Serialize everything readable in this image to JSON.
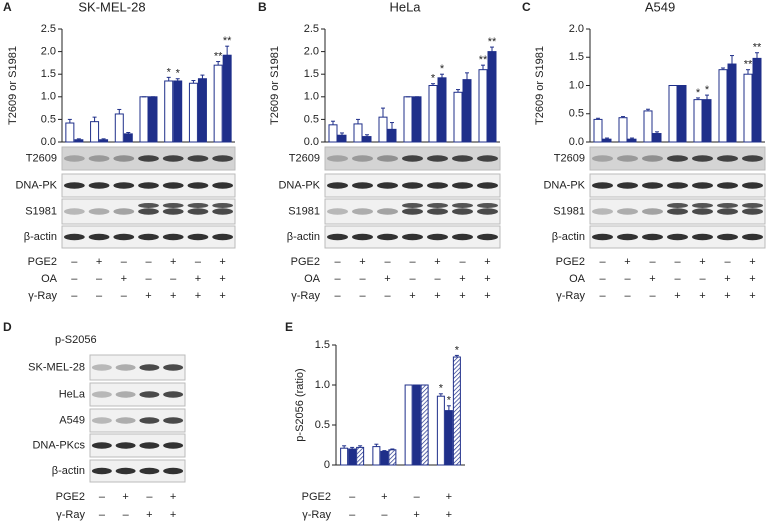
{
  "chart_data": [
    {
      "type": "bar",
      "panel": "A",
      "title": "SK-MEL-28",
      "y_label": "T2609 or S1981",
      "ylim": [
        0,
        2.5
      ],
      "yticks": [
        {
          "value": 0,
          "label": "0.0"
        },
        0.5,
        {
          "value": 1,
          "label": "1.0"
        },
        1.5,
        {
          "value": 2,
          "label": "2.0"
        },
        2.5
      ],
      "series": [
        {
          "color": "#ffffff",
          "values": [
            0.42,
            0.45,
            0.62,
            1.0,
            1.35,
            1.3,
            1.7
          ],
          "errors": [
            0.08,
            0.1,
            0.1,
            0,
            0.08,
            0.06,
            0.08
          ],
          "annotations": [
            null,
            null,
            null,
            null,
            "*",
            null,
            "**"
          ]
        },
        {
          "color": "#1f2f8a",
          "values": [
            0.05,
            0.05,
            0.18,
            1.0,
            1.35,
            1.4,
            1.92
          ],
          "errors": [
            0.02,
            0.02,
            0.03,
            0,
            0.05,
            0.08,
            0.2
          ],
          "annotations": [
            null,
            null,
            null,
            null,
            "*",
            null,
            "**"
          ]
        }
      ],
      "blots": [
        "T2609",
        "DNA-PK",
        "S1981",
        "β-actin"
      ],
      "conditions": [
        {
          "label": "PGE2",
          "signs": [
            "–",
            "+",
            "–",
            "–",
            "+",
            "–",
            "+"
          ]
        },
        {
          "label": "OA",
          "signs": [
            "–",
            "–",
            "+",
            "–",
            "–",
            "+",
            "+"
          ]
        },
        {
          "label": "γ-Ray",
          "signs": [
            "–",
            "–",
            "–",
            "+",
            "+",
            "+",
            "+"
          ]
        }
      ]
    },
    {
      "type": "bar",
      "panel": "B",
      "title": "HeLa",
      "y_label": "T2609 or S1981",
      "ylim": [
        0,
        2.5
      ],
      "yticks": [
        {
          "value": 0,
          "label": "0.0"
        },
        0.5,
        {
          "value": 1,
          "label": "1.0"
        },
        1.5,
        {
          "value": 2,
          "label": "2.0"
        },
        2.5
      ],
      "series": [
        {
          "color": "#ffffff",
          "values": [
            0.38,
            0.4,
            0.55,
            1.0,
            1.25,
            1.1,
            1.6
          ],
          "errors": [
            0.08,
            0.1,
            0.2,
            0,
            0.04,
            0.06,
            0.1
          ],
          "annotations": [
            null,
            null,
            null,
            null,
            "*",
            null,
            "**"
          ]
        },
        {
          "color": "#1f2f8a",
          "values": [
            0.15,
            0.12,
            0.28,
            1.0,
            1.42,
            1.38,
            2.0
          ],
          "errors": [
            0.05,
            0.04,
            0.15,
            0,
            0.08,
            0.15,
            0.1
          ],
          "annotations": [
            null,
            null,
            null,
            null,
            "*",
            null,
            "**"
          ]
        }
      ],
      "blots": [
        "T2609",
        "DNA-PK",
        "S1981",
        "β-actin"
      ],
      "conditions": [
        {
          "label": "PGE2",
          "signs": [
            "–",
            "+",
            "–",
            "–",
            "+",
            "–",
            "+"
          ]
        },
        {
          "label": "OA",
          "signs": [
            "–",
            "–",
            "+",
            "–",
            "–",
            "+",
            "+"
          ]
        },
        {
          "label": "γ-Ray",
          "signs": [
            "–",
            "–",
            "–",
            "+",
            "+",
            "+",
            "+"
          ]
        }
      ]
    },
    {
      "type": "bar",
      "panel": "C",
      "title": "A549",
      "y_label": "T2609 or S1981",
      "ylim": [
        0,
        2
      ],
      "yticks": [
        {
          "value": 0,
          "label": "0.0"
        },
        0.5,
        {
          "value": 1,
          "label": "1.0"
        },
        1.5,
        {
          "value": 2,
          "label": "2.0"
        }
      ],
      "series": [
        {
          "color": "#ffffff",
          "values": [
            0.4,
            0.43,
            0.55,
            1.0,
            0.75,
            1.28,
            1.2
          ],
          "errors": [
            0.02,
            0.02,
            0.03,
            0,
            0.03,
            0.03,
            0.08
          ],
          "annotations": [
            null,
            null,
            null,
            null,
            "*",
            null,
            "**"
          ]
        },
        {
          "color": "#1f2f8a",
          "values": [
            0.05,
            0.05,
            0.15,
            1.0,
            0.75,
            1.38,
            1.48
          ],
          "errors": [
            0.02,
            0.02,
            0.03,
            0,
            0.08,
            0.15,
            0.1
          ],
          "annotations": [
            null,
            null,
            null,
            null,
            "*",
            null,
            "**"
          ]
        }
      ],
      "blots": [
        "T2609",
        "DNA-PK",
        "S1981",
        "β-actin"
      ],
      "conditions": [
        {
          "label": "PGE2",
          "signs": [
            "–",
            "+",
            "–",
            "–",
            "+",
            "–",
            "+"
          ]
        },
        {
          "label": "OA",
          "signs": [
            "–",
            "–",
            "+",
            "–",
            "–",
            "+",
            "+"
          ]
        },
        {
          "label": "γ-Ray",
          "signs": [
            "–",
            "–",
            "–",
            "+",
            "+",
            "+",
            "+"
          ]
        }
      ]
    },
    {
      "type": "bar",
      "panel": "E",
      "y_label": "p-S2056 (ratio)",
      "ylim": [
        0,
        1.5
      ],
      "yticks": [
        0,
        0.5,
        {
          "value": 1,
          "label": "1.0"
        },
        1.5
      ],
      "series": [
        {
          "color": "#ffffff",
          "values": [
            0.21,
            0.23,
            1.0,
            0.86
          ],
          "errors": [
            0.03,
            0.03,
            0,
            0.03
          ],
          "annotations": [
            null,
            null,
            null,
            "*"
          ]
        },
        {
          "color": "#1f2f8a",
          "values": [
            0.2,
            0.17,
            1.0,
            0.68
          ],
          "errors": [
            0.02,
            0.01,
            0,
            0.06
          ],
          "annotations": [
            null,
            null,
            null,
            "*"
          ]
        },
        {
          "color": "#ffffff",
          "hatch": true,
          "values": [
            0.22,
            0.19,
            1.0,
            1.35
          ],
          "errors": [
            0.02,
            0.01,
            0,
            0.02
          ],
          "annotations": [
            null,
            null,
            null,
            "*"
          ]
        }
      ],
      "conditions": [
        {
          "label": "PGE2",
          "signs": [
            "–",
            "+",
            "–",
            "+"
          ]
        },
        {
          "label": "γ-Ray",
          "signs": [
            "–",
            "–",
            "+",
            "+"
          ]
        }
      ]
    }
  ],
  "blot_panel": {
    "panel": "D",
    "title": "p-S2056",
    "blots": [
      "SK-MEL-28",
      "HeLa",
      "A549",
      "DNA-PKcs",
      "β-actin"
    ],
    "conditions": [
      {
        "label": "PGE2",
        "signs": [
          "–",
          "+",
          "–",
          "+"
        ]
      },
      {
        "label": "γ-Ray",
        "signs": [
          "–",
          "–",
          "+",
          "+"
        ]
      }
    ]
  }
}
